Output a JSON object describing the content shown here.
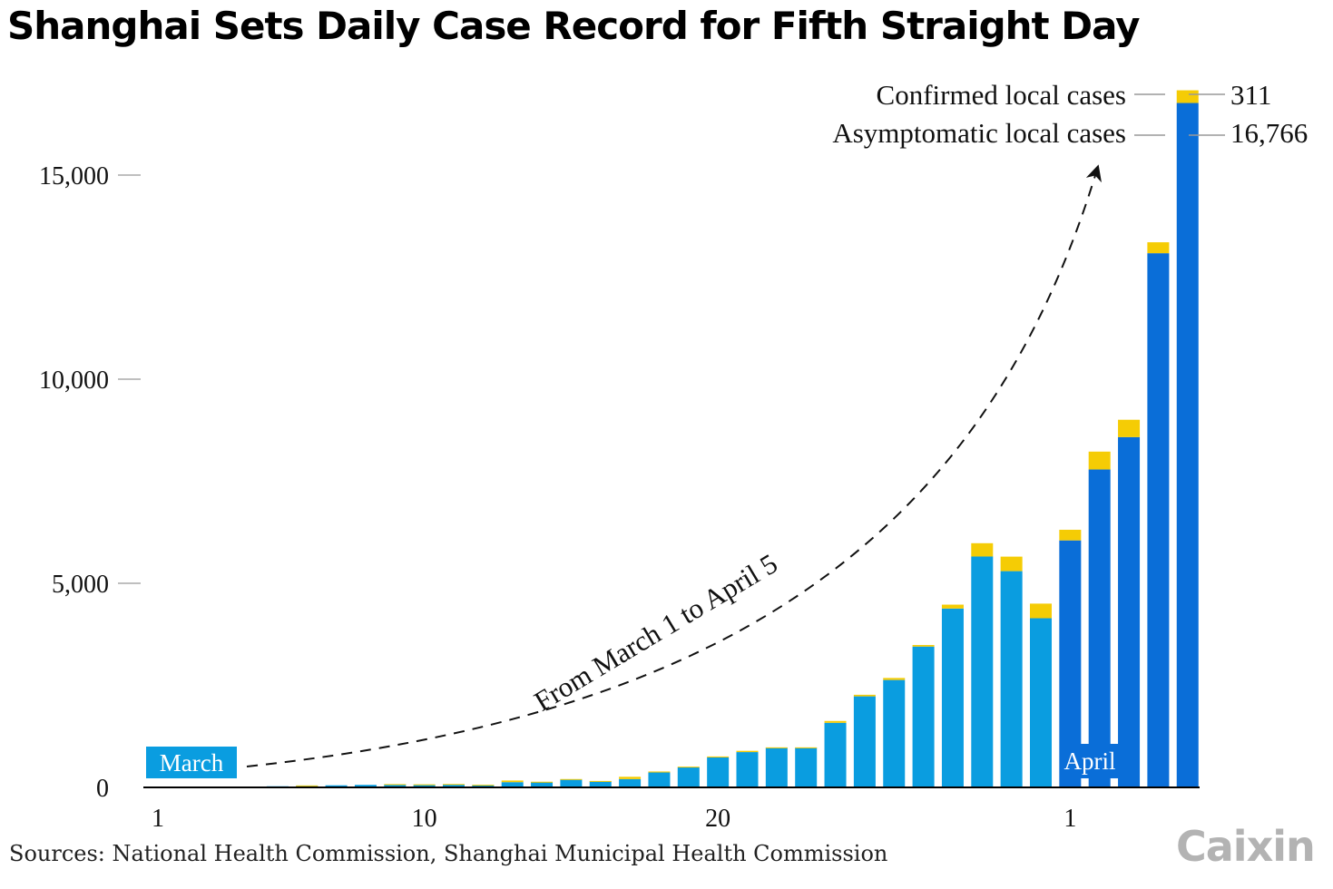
{
  "title": "Shanghai Sets Daily Case Record for Fifth Straight Day",
  "source": "Sources: National Health Commission, Shanghai Municipal Health Commission",
  "logo": "Caixin",
  "colors": {
    "march": "#0a9de0",
    "april": "#0a6ed8",
    "confirmed": "#f5cc05",
    "axis": "#000000",
    "tick": "#999999"
  },
  "chart_data": {
    "type": "bar",
    "stacked": true,
    "title": "Shanghai Sets Daily Case Record for Fifth Straight Day",
    "x_tick_labels": [
      {
        "day": 1,
        "label": "1"
      },
      {
        "day": 10,
        "label": "10"
      },
      {
        "day": 20,
        "label": "20"
      },
      {
        "day": 32,
        "label": "1"
      }
    ],
    "y_ticks": [
      0,
      5000,
      10000,
      15000
    ],
    "y_tick_labels": [
      "0",
      "5,000",
      "10,000",
      "15,000"
    ],
    "ylim": [
      0,
      17500
    ],
    "month_labels": [
      "March",
      "April"
    ],
    "annotation": "From March 1 to April 5",
    "series": [
      {
        "name": "Asymptomatic local cases",
        "values": [
          0,
          1,
          8,
          16,
          28,
          45,
          51,
          62,
          76,
          64,
          78,
          64,
          128,
          130,
          197,
          150,
          203,
          366,
          492,
          734,
          865,
          977,
          977,
          1582,
          2231,
          2631,
          3450,
          4381,
          5656,
          5298,
          4144,
          6051,
          7788,
          8581,
          13086,
          16766
        ]
      },
      {
        "name": "Confirmed local cases",
        "values": [
          1,
          2,
          3,
          0,
          0,
          3,
          0,
          0,
          4,
          11,
          5,
          1,
          41,
          9,
          8,
          8,
          57,
          24,
          17,
          24,
          31,
          4,
          4,
          45,
          38,
          50,
          38,
          96,
          326,
          355,
          358,
          260,
          438,
          425,
          268,
          311
        ]
      }
    ],
    "end_labels": [
      {
        "series": "Confirmed local cases",
        "value": "311"
      },
      {
        "series": "Asymptomatic local cases",
        "value": "16,766"
      }
    ]
  }
}
